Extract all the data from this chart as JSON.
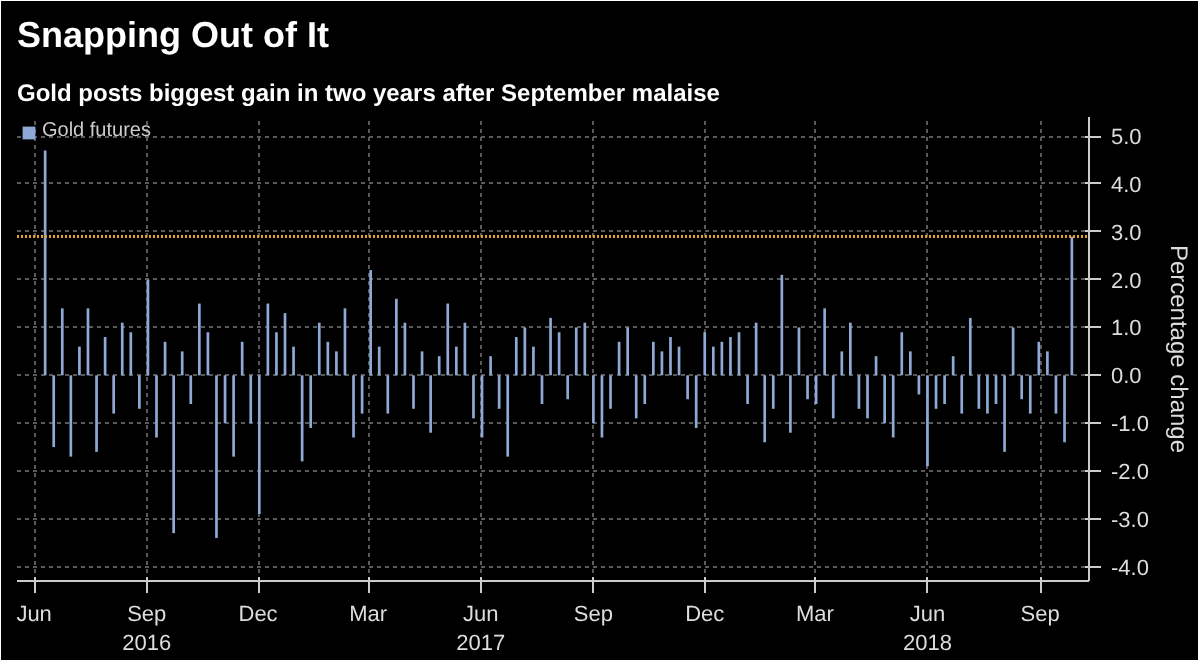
{
  "chart_data": {
    "type": "bar",
    "title": "Snapping Out of It",
    "subtitle": "Gold posts biggest gain in two years after September malaise",
    "ylabel": "Percentage change",
    "x": [
      "2016-06-24",
      "2016-07-01",
      "2016-07-08",
      "2016-07-15",
      "2016-07-22",
      "2016-07-29",
      "2016-08-05",
      "2016-08-12",
      "2016-08-19",
      "2016-08-26",
      "2016-09-02",
      "2016-09-09",
      "2016-09-16",
      "2016-09-23",
      "2016-09-30",
      "2016-10-07",
      "2016-10-14",
      "2016-10-21",
      "2016-10-28",
      "2016-11-04",
      "2016-11-11",
      "2016-11-18",
      "2016-11-25",
      "2016-12-02",
      "2016-12-09",
      "2016-12-16",
      "2016-12-23",
      "2016-12-30",
      "2017-01-06",
      "2017-01-13",
      "2017-01-20",
      "2017-01-27",
      "2017-02-03",
      "2017-02-10",
      "2017-02-17",
      "2017-02-24",
      "2017-03-03",
      "2017-03-10",
      "2017-03-17",
      "2017-03-24",
      "2017-03-31",
      "2017-04-07",
      "2017-04-14",
      "2017-04-21",
      "2017-04-28",
      "2017-05-05",
      "2017-05-12",
      "2017-05-19",
      "2017-05-26",
      "2017-06-02",
      "2017-06-09",
      "2017-06-16",
      "2017-06-23",
      "2017-06-30",
      "2017-07-07",
      "2017-07-14",
      "2017-07-21",
      "2017-07-28",
      "2017-08-04",
      "2017-08-11",
      "2017-08-18",
      "2017-08-25",
      "2017-09-01",
      "2017-09-08",
      "2017-09-15",
      "2017-09-22",
      "2017-09-29",
      "2017-10-06",
      "2017-10-13",
      "2017-10-20",
      "2017-10-27",
      "2017-11-03",
      "2017-11-10",
      "2017-11-17",
      "2017-11-24",
      "2017-12-01",
      "2017-12-08",
      "2017-12-15",
      "2017-12-22",
      "2017-12-29",
      "2018-01-05",
      "2018-01-12",
      "2018-01-19",
      "2018-01-26",
      "2018-02-02",
      "2018-02-09",
      "2018-02-16",
      "2018-02-23",
      "2018-03-02",
      "2018-03-09",
      "2018-03-16",
      "2018-03-23",
      "2018-03-30",
      "2018-04-06",
      "2018-04-13",
      "2018-04-20",
      "2018-04-27",
      "2018-05-04",
      "2018-05-11",
      "2018-05-18",
      "2018-05-25",
      "2018-06-01",
      "2018-06-08",
      "2018-06-15",
      "2018-06-22",
      "2018-06-29",
      "2018-07-06",
      "2018-07-13",
      "2018-07-20",
      "2018-07-27",
      "2018-08-03",
      "2018-08-10",
      "2018-08-17",
      "2018-08-24",
      "2018-08-31",
      "2018-09-07",
      "2018-09-14",
      "2018-09-21",
      "2018-09-28",
      "2018-10-05",
      "2018-10-11"
    ],
    "series": [
      {
        "name": "Gold futures",
        "color": "#8fa9d6",
        "values": [
          4.7,
          -1.5,
          1.4,
          -1.7,
          0.6,
          1.4,
          -1.6,
          0.8,
          -0.8,
          1.1,
          0.9,
          -0.7,
          2.0,
          -1.3,
          0.7,
          -3.3,
          0.5,
          -0.6,
          1.5,
          0.9,
          -3.4,
          -1.0,
          -1.7,
          0.7,
          -1.0,
          -2.9,
          1.5,
          0.9,
          1.3,
          0.6,
          -1.8,
          -1.1,
          1.1,
          0.7,
          0.5,
          1.4,
          -1.3,
          -0.8,
          2.2,
          0.6,
          -0.8,
          1.6,
          1.1,
          -0.7,
          0.5,
          -1.2,
          0.4,
          1.5,
          0.6,
          1.1,
          -0.9,
          -1.3,
          0.4,
          -0.7,
          -1.7,
          0.8,
          1.0,
          0.6,
          -0.6,
          1.2,
          0.9,
          -0.5,
          1.0,
          1.1,
          -1.0,
          -1.3,
          -0.7,
          0.7,
          1.0,
          -0.9,
          -0.6,
          0.7,
          0.5,
          0.8,
          0.6,
          -0.5,
          -1.1,
          0.9,
          0.6,
          0.7,
          0.8,
          0.9,
          -0.6,
          1.1,
          -1.4,
          -0.7,
          2.1,
          -1.2,
          1.0,
          -0.5,
          -0.6,
          1.4,
          -0.9,
          0.5,
          1.1,
          -0.7,
          -0.9,
          0.4,
          -1.0,
          -1.3,
          0.9,
          0.5,
          -0.4,
          -1.9,
          -0.7,
          -0.6,
          0.4,
          -0.8,
          1.2,
          -0.7,
          -0.8,
          -0.6,
          -1.6,
          1.0,
          -0.5,
          -0.8,
          0.7,
          0.5,
          -0.8,
          -1.4,
          2.9
        ]
      }
    ],
    "xlim": [
      "2016-06-01",
      "2018-10-25"
    ],
    "xticks": [
      {
        "value": "2016-06-15",
        "label": "Jun"
      },
      {
        "value": "2016-09-15",
        "label": "Sep\n2016"
      },
      {
        "value": "2016-12-15",
        "label": "Dec"
      },
      {
        "value": "2017-03-15",
        "label": "Mar"
      },
      {
        "value": "2017-06-15",
        "label": "Jun\n2017"
      },
      {
        "value": "2017-09-15",
        "label": "Sep"
      },
      {
        "value": "2017-12-15",
        "label": "Dec"
      },
      {
        "value": "2018-03-15",
        "label": "Mar"
      },
      {
        "value": "2018-06-15",
        "label": "Jun\n2018"
      },
      {
        "value": "2018-09-15",
        "label": "Sep"
      }
    ],
    "ylim": [
      -4.3,
      5.4
    ],
    "yticks": [
      {
        "value": -4,
        "label": "-4.0"
      },
      {
        "value": -3,
        "label": "-3.0"
      },
      {
        "value": -2,
        "label": "-2.0"
      },
      {
        "value": -1,
        "label": "-1.0"
      },
      {
        "value": 0,
        "label": "0.0"
      },
      {
        "value": 1,
        "label": "1.0"
      },
      {
        "value": 2,
        "label": "2.0"
      },
      {
        "value": 3,
        "label": "3.0"
      },
      {
        "value": 4,
        "label": "4.0"
      },
      {
        "value": 5,
        "label": "5.0"
      }
    ],
    "ref_lines": [
      {
        "axis": "y",
        "value": 2.9,
        "color": "#e0a526",
        "line_style": "dotted"
      }
    ],
    "grid": true,
    "legend": "top left"
  }
}
